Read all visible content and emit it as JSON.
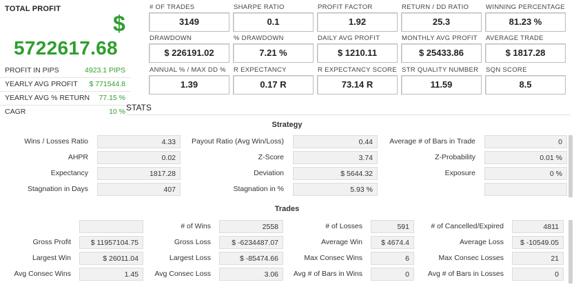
{
  "summary": {
    "total_profit_label": "TOTAL PROFIT",
    "currency_symbol": "$",
    "total_profit_value": "5722617.68",
    "rows": [
      {
        "label": "PROFIT IN PIPS",
        "value": "4923.1 PIPS"
      },
      {
        "label": "YEARLY AVG PROFIT",
        "value": "$ 771544.8"
      },
      {
        "label": "YEARLY AVG % RETURN",
        "value": "77.15 %"
      },
      {
        "label": "CAGR",
        "value": "10 %"
      }
    ]
  },
  "metrics": [
    {
      "label": "# OF TRADES",
      "value": "3149"
    },
    {
      "label": "SHARPE RATIO",
      "value": "0.1"
    },
    {
      "label": "PROFIT FACTOR",
      "value": "1.92"
    },
    {
      "label": "RETURN / DD RATIO",
      "value": "25.3"
    },
    {
      "label": "WINNING PERCENTAGE",
      "value": "81.23 %"
    },
    {
      "label": "DRAWDOWN",
      "value": "$ 226191.02"
    },
    {
      "label": "% DRAWDOWN",
      "value": "7.21 %"
    },
    {
      "label": "DAILY AVG PROFIT",
      "value": "$ 1210.11"
    },
    {
      "label": "MONTHLY AVG PROFIT",
      "value": "$ 25433.86"
    },
    {
      "label": "AVERAGE TRADE",
      "value": "$ 1817.28"
    },
    {
      "label": "ANNUAL % / MAX DD %",
      "value": "1.39"
    },
    {
      "label": "R EXPECTANCY",
      "value": "0.17 R"
    },
    {
      "label": "R EXPECTANCY SCORE",
      "value": "73.14 R"
    },
    {
      "label": "STR QUALITY NUMBER",
      "value": "11.59"
    },
    {
      "label": "SQN SCORE",
      "value": "8.5"
    }
  ],
  "stats_title": "STATS",
  "strategy": {
    "title": "Strategy",
    "rows": [
      [
        {
          "label": "Wins / Losses Ratio",
          "value": "4.33"
        },
        {
          "label": "Payout Ratio (Avg Win/Loss)",
          "value": "0.44"
        },
        {
          "label": "Average # of Bars in Trade",
          "value": "0"
        }
      ],
      [
        {
          "label": "AHPR",
          "value": "0.02"
        },
        {
          "label": "Z-Score",
          "value": "3.74"
        },
        {
          "label": "Z-Probability",
          "value": "0.01 %"
        }
      ],
      [
        {
          "label": "Expectancy",
          "value": "1817.28"
        },
        {
          "label": "Deviation",
          "value": "$ 5644.32"
        },
        {
          "label": "Exposure",
          "value": "0 %"
        }
      ],
      [
        {
          "label": "Stagnation in Days",
          "value": "407"
        },
        {
          "label": "Stagnation in %",
          "value": "5.93 %"
        },
        {
          "label": "",
          "value": ""
        }
      ]
    ]
  },
  "trades": {
    "title": "Trades",
    "rows": [
      [
        {
          "label": "",
          "value": ""
        },
        {
          "label": "# of Wins",
          "value": "2558"
        },
        {
          "label": "# of Losses",
          "value": "591"
        },
        {
          "label": "# of Cancelled/Expired",
          "value": "4811"
        }
      ],
      [
        {
          "label": "Gross Profit",
          "value": "$ 11957104.75"
        },
        {
          "label": "Gross Loss",
          "value": "$ -6234487.07"
        },
        {
          "label": "Average Win",
          "value": "$ 4674.4"
        },
        {
          "label": "Average Loss",
          "value": "$ -10549.05"
        }
      ],
      [
        {
          "label": "Largest Win",
          "value": "$ 26011.04"
        },
        {
          "label": "Largest Loss",
          "value": "$ -85474.66"
        },
        {
          "label": "Max Consec Wins",
          "value": "6"
        },
        {
          "label": "Max Consec Losses",
          "value": "21"
        }
      ],
      [
        {
          "label": "Avg Consec Wins",
          "value": "1.45"
        },
        {
          "label": "Avg Consec Loss",
          "value": "3.06"
        },
        {
          "label": "Avg # of Bars in Wins",
          "value": "0"
        },
        {
          "label": "Avg # of Bars in Losses",
          "value": "0"
        }
      ]
    ]
  },
  "colors": {
    "profit_green": "#2e9e2e"
  }
}
